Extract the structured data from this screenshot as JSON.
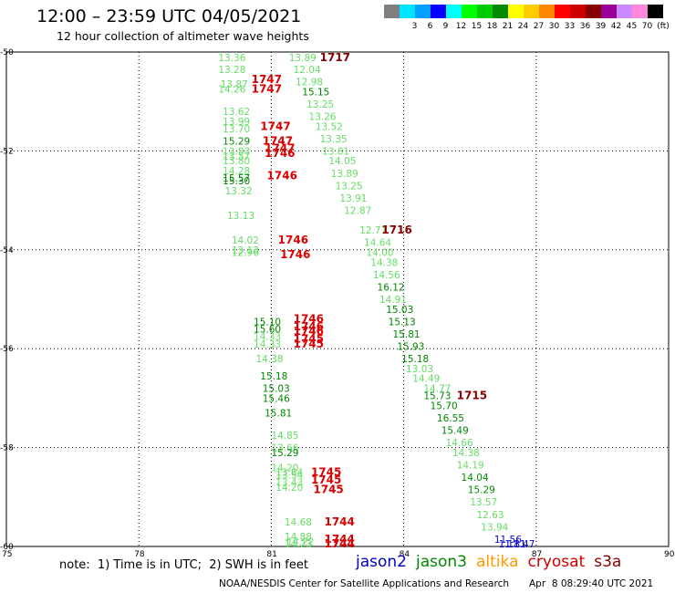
{
  "header": {
    "title": "12:00 – 23:59 UTC 04/05/2021",
    "subtitle": "12 hour collection of altimeter wave heights"
  },
  "color_scale": {
    "unit": "(ft)",
    "bins": [
      {
        "label": "",
        "color": "#7f7f7f"
      },
      {
        "label": "3",
        "color": "#00e5ff"
      },
      {
        "label": "6",
        "color": "#00a0ff"
      },
      {
        "label": "9",
        "color": "#0000ff"
      },
      {
        "label": "12",
        "color": "#00ffff"
      },
      {
        "label": "15",
        "color": "#00ff00"
      },
      {
        "label": "18",
        "color": "#00cc00"
      },
      {
        "label": "21",
        "color": "#008800"
      },
      {
        "label": "24",
        "color": "#ffff00"
      },
      {
        "label": "27",
        "color": "#ffcc00"
      },
      {
        "label": "30",
        "color": "#ff8800"
      },
      {
        "label": "33",
        "color": "#ff0000"
      },
      {
        "label": "36",
        "color": "#cc0000"
      },
      {
        "label": "39",
        "color": "#880000"
      },
      {
        "label": "42",
        "color": "#990099"
      },
      {
        "label": "45",
        "color": "#cc88ff"
      },
      {
        "label": "70",
        "color": "#ff88dd"
      },
      {
        "label": "",
        "color": "#000000"
      }
    ]
  },
  "footer": {
    "note": "note:  1) Time is in UTC;  2) SWH is in feet",
    "credit": "NOAA/NESDIS Center for Satellite Applications and Research",
    "timestamp": "Apr  8 08:29:40 UTC 2021",
    "legend": [
      {
        "name": "jason2",
        "color": "#0000cc"
      },
      {
        "name": "jason3",
        "color": "#008800"
      },
      {
        "name": "altika",
        "color": "#ff9900"
      },
      {
        "name": "cryosat",
        "color": "#cc0000"
      },
      {
        "name": "s3a",
        "color": "#880000"
      }
    ]
  },
  "chart_data": {
    "type": "scatter",
    "xlim": [
      75,
      90
    ],
    "ylim": [
      -60,
      -50
    ],
    "x_ticks": [
      75,
      78,
      81,
      84,
      87,
      90
    ],
    "y_ticks": [
      -50,
      -52,
      -54,
      -56,
      -58,
      -60
    ],
    "x_tick_labels": [
      "75",
      "78",
      "81",
      "84",
      "87",
      "90"
    ],
    "y_tick_labels": [
      "-50",
      "-52",
      "-54",
      "-56",
      "-58",
      "-60"
    ],
    "grid": true,
    "colors": {
      "light": "#66dd66",
      "green": "#008800",
      "blue": "#0000cc",
      "red": "#dd0000",
      "maroon": "#880000"
    },
    "labels": [
      {
        "x": 79.8,
        "y": -50.05,
        "text": "13.36",
        "c": "light"
      },
      {
        "x": 79.8,
        "y": -50.35,
        "text": "13.28",
        "c": "light"
      },
      {
        "x": 79.85,
        "y": -50.65,
        "text": "13.87",
        "c": "light"
      },
      {
        "x": 79.8,
        "y": -50.75,
        "text": "14.26",
        "c": "light"
      },
      {
        "x": 81.4,
        "y": -50.05,
        "text": "13.89",
        "c": "light"
      },
      {
        "x": 81.5,
        "y": -50.35,
        "text": "12.04",
        "c": "light"
      },
      {
        "x": 81.55,
        "y": -50.6,
        "text": "12.98",
        "c": "light"
      },
      {
        "x": 81.7,
        "y": -50.8,
        "text": "15.15",
        "c": "green"
      },
      {
        "x": 81.8,
        "y": -51.05,
        "text": "13.25",
        "c": "light"
      },
      {
        "x": 81.85,
        "y": -51.3,
        "text": "13.26",
        "c": "light"
      },
      {
        "x": 82.0,
        "y": -51.5,
        "text": "13.52",
        "c": "light"
      },
      {
        "x": 82.1,
        "y": -51.75,
        "text": "13.35",
        "c": "light"
      },
      {
        "x": 82.15,
        "y": -52.0,
        "text": "13.81",
        "c": "light"
      },
      {
        "x": 82.3,
        "y": -52.2,
        "text": "14.05",
        "c": "light"
      },
      {
        "x": 82.35,
        "y": -52.45,
        "text": "13.89",
        "c": "light"
      },
      {
        "x": 82.45,
        "y": -52.7,
        "text": "13.25",
        "c": "light"
      },
      {
        "x": 82.55,
        "y": -52.95,
        "text": "13.91",
        "c": "light"
      },
      {
        "x": 82.65,
        "y": -53.2,
        "text": "12.87",
        "c": "light"
      },
      {
        "x": 83.0,
        "y": -53.6,
        "text": "12.71",
        "c": "light"
      },
      {
        "x": 83.1,
        "y": -53.85,
        "text": "14.64",
        "c": "light"
      },
      {
        "x": 83.15,
        "y": -54.05,
        "text": "14.00",
        "c": "light"
      },
      {
        "x": 83.25,
        "y": -54.25,
        "text": "14.38",
        "c": "light"
      },
      {
        "x": 83.3,
        "y": -54.5,
        "text": "14.56",
        "c": "light"
      },
      {
        "x": 83.4,
        "y": -54.75,
        "text": "16.12",
        "c": "green"
      },
      {
        "x": 83.45,
        "y": -55.0,
        "text": "14.91",
        "c": "light"
      },
      {
        "x": 83.6,
        "y": -55.2,
        "text": "15.03",
        "c": "green"
      },
      {
        "x": 83.65,
        "y": -55.45,
        "text": "15.13",
        "c": "green"
      },
      {
        "x": 83.75,
        "y": -55.7,
        "text": "15.81",
        "c": "green"
      },
      {
        "x": 83.85,
        "y": -55.95,
        "text": "15.93",
        "c": "green"
      },
      {
        "x": 83.95,
        "y": -56.2,
        "text": "15.18",
        "c": "green"
      },
      {
        "x": 84.05,
        "y": -56.4,
        "text": "13.03",
        "c": "light"
      },
      {
        "x": 84.2,
        "y": -56.6,
        "text": "14.49",
        "c": "light"
      },
      {
        "x": 84.45,
        "y": -56.8,
        "text": "14.77",
        "c": "light"
      },
      {
        "x": 84.45,
        "y": -56.95,
        "text": "15.73",
        "c": "green"
      },
      {
        "x": 84.6,
        "y": -57.15,
        "text": "15.70",
        "c": "green"
      },
      {
        "x": 84.75,
        "y": -57.4,
        "text": "16.55",
        "c": "green"
      },
      {
        "x": 84.85,
        "y": -57.65,
        "text": "15.49",
        "c": "green"
      },
      {
        "x": 84.95,
        "y": -57.9,
        "text": "14.66",
        "c": "light"
      },
      {
        "x": 85.1,
        "y": -58.1,
        "text": "14.38",
        "c": "light"
      },
      {
        "x": 85.2,
        "y": -58.35,
        "text": "14.19",
        "c": "light"
      },
      {
        "x": 85.3,
        "y": -58.6,
        "text": "14.04",
        "c": "green"
      },
      {
        "x": 85.45,
        "y": -58.85,
        "text": "15.29",
        "c": "green"
      },
      {
        "x": 85.5,
        "y": -59.1,
        "text": "13.57",
        "c": "light"
      },
      {
        "x": 85.65,
        "y": -59.35,
        "text": "12.63",
        "c": "light"
      },
      {
        "x": 85.75,
        "y": -59.6,
        "text": "13.94",
        "c": "light"
      },
      {
        "x": 86.05,
        "y": -59.85,
        "text": "11.56",
        "c": "blue"
      },
      {
        "x": 86.15,
        "y": -60.1,
        "text": "11.81",
        "c": "blue"
      },
      {
        "x": 86.35,
        "y": -60.35,
        "text": "11.47",
        "c": "blue"
      },
      {
        "x": 79.9,
        "y": -51.2,
        "text": "13.62",
        "c": "light"
      },
      {
        "x": 79.9,
        "y": -51.4,
        "text": "13.99",
        "c": "light"
      },
      {
        "x": 79.9,
        "y": -51.55,
        "text": "13.70",
        "c": "light"
      },
      {
        "x": 79.9,
        "y": -51.8,
        "text": "15.29",
        "c": "green"
      },
      {
        "x": 79.9,
        "y": -52.0,
        "text": "13.83",
        "c": "light"
      },
      {
        "x": 79.9,
        "y": -52.1,
        "text": "13.57",
        "c": "light"
      },
      {
        "x": 79.9,
        "y": -52.2,
        "text": "13.80",
        "c": "light"
      },
      {
        "x": 79.9,
        "y": -52.4,
        "text": "14.28",
        "c": "light"
      },
      {
        "x": 79.9,
        "y": -52.55,
        "text": "15.57",
        "c": "green"
      },
      {
        "x": 79.9,
        "y": -52.6,
        "text": "15.30",
        "c": "green"
      },
      {
        "x": 79.95,
        "y": -52.8,
        "text": "13.32",
        "c": "light"
      },
      {
        "x": 80.0,
        "y": -53.3,
        "text": "13.13",
        "c": "light"
      },
      {
        "x": 80.1,
        "y": -53.8,
        "text": "14.02",
        "c": "light"
      },
      {
        "x": 80.1,
        "y": -54.0,
        "text": "13.13",
        "c": "light"
      },
      {
        "x": 80.1,
        "y": -54.05,
        "text": "12.96",
        "c": "light"
      },
      {
        "x": 80.6,
        "y": -55.45,
        "text": "15.10",
        "c": "green"
      },
      {
        "x": 80.6,
        "y": -55.6,
        "text": "15.60",
        "c": "green"
      },
      {
        "x": 80.6,
        "y": -55.75,
        "text": "14.33",
        "c": "light"
      },
      {
        "x": 80.6,
        "y": -55.9,
        "text": "14.33",
        "c": "light"
      },
      {
        "x": 80.65,
        "y": -56.2,
        "text": "14.38",
        "c": "light"
      },
      {
        "x": 80.75,
        "y": -56.55,
        "text": "15.18",
        "c": "green"
      },
      {
        "x": 80.8,
        "y": -56.8,
        "text": "15.03",
        "c": "green"
      },
      {
        "x": 80.8,
        "y": -57.0,
        "text": "15.46",
        "c": "green"
      },
      {
        "x": 80.85,
        "y": -57.3,
        "text": "15.81",
        "c": "green"
      },
      {
        "x": 81.0,
        "y": -57.75,
        "text": "14.85",
        "c": "light"
      },
      {
        "x": 81.0,
        "y": -58.0,
        "text": "13.66",
        "c": "light"
      },
      {
        "x": 81.0,
        "y": -58.1,
        "text": "15.29",
        "c": "green"
      },
      {
        "x": 81.0,
        "y": -58.4,
        "text": "14.20",
        "c": "light"
      },
      {
        "x": 81.1,
        "y": -58.5,
        "text": "13.84",
        "c": "light"
      },
      {
        "x": 81.1,
        "y": -58.55,
        "text": "13.54",
        "c": "light"
      },
      {
        "x": 81.1,
        "y": -58.7,
        "text": "13.43",
        "c": "light"
      },
      {
        "x": 81.1,
        "y": -58.8,
        "text": "14.20",
        "c": "light"
      },
      {
        "x": 81.3,
        "y": -59.5,
        "text": "14.68",
        "c": "light"
      },
      {
        "x": 81.3,
        "y": -59.8,
        "text": "14.88",
        "c": "light"
      },
      {
        "x": 81.3,
        "y": -60.05,
        "text": "14.23",
        "c": "light"
      },
      {
        "x": 81.35,
        "y": -59.9,
        "text": "14.22",
        "c": "light"
      },
      {
        "x": 82.1,
        "y": -50.05,
        "text": "1717",
        "c": "maroon"
      },
      {
        "x": 80.55,
        "y": -50.55,
        "text": "1747",
        "c": "red"
      },
      {
        "x": 80.55,
        "y": -50.75,
        "text": "1747",
        "c": "red"
      },
      {
        "x": 80.75,
        "y": -51.5,
        "text": "1747",
        "c": "red"
      },
      {
        "x": 80.8,
        "y": -51.8,
        "text": "1747",
        "c": "red"
      },
      {
        "x": 80.85,
        "y": -51.95,
        "text": "1747",
        "c": "red"
      },
      {
        "x": 80.85,
        "y": -52.05,
        "text": "1746",
        "c": "red"
      },
      {
        "x": 80.9,
        "y": -52.5,
        "text": "1746",
        "c": "red"
      },
      {
        "x": 83.5,
        "y": -53.6,
        "text": "1716",
        "c": "maroon"
      },
      {
        "x": 81.15,
        "y": -53.8,
        "text": "1746",
        "c": "red"
      },
      {
        "x": 81.2,
        "y": -54.1,
        "text": "1746",
        "c": "red"
      },
      {
        "x": 81.5,
        "y": -55.4,
        "text": "1746",
        "c": "red"
      },
      {
        "x": 81.5,
        "y": -55.55,
        "text": "1746",
        "c": "red"
      },
      {
        "x": 81.5,
        "y": -55.65,
        "text": "1746",
        "c": "red"
      },
      {
        "x": 81.5,
        "y": -55.8,
        "text": "1745",
        "c": "red"
      },
      {
        "x": 81.5,
        "y": -55.9,
        "text": "1745",
        "c": "red"
      },
      {
        "x": 85.2,
        "y": -56.95,
        "text": "1715",
        "c": "maroon"
      },
      {
        "x": 81.9,
        "y": -58.5,
        "text": "1745",
        "c": "red"
      },
      {
        "x": 81.9,
        "y": -58.65,
        "text": "1745",
        "c": "red"
      },
      {
        "x": 81.95,
        "y": -58.85,
        "text": "1745",
        "c": "red"
      },
      {
        "x": 82.2,
        "y": -59.5,
        "text": "1744",
        "c": "red"
      },
      {
        "x": 82.2,
        "y": -59.85,
        "text": "1744",
        "c": "red"
      },
      {
        "x": 82.2,
        "y": -59.95,
        "text": "1744",
        "c": "red"
      },
      {
        "x": 82.2,
        "y": -60.1,
        "text": "1744",
        "c": "red"
      }
    ]
  }
}
